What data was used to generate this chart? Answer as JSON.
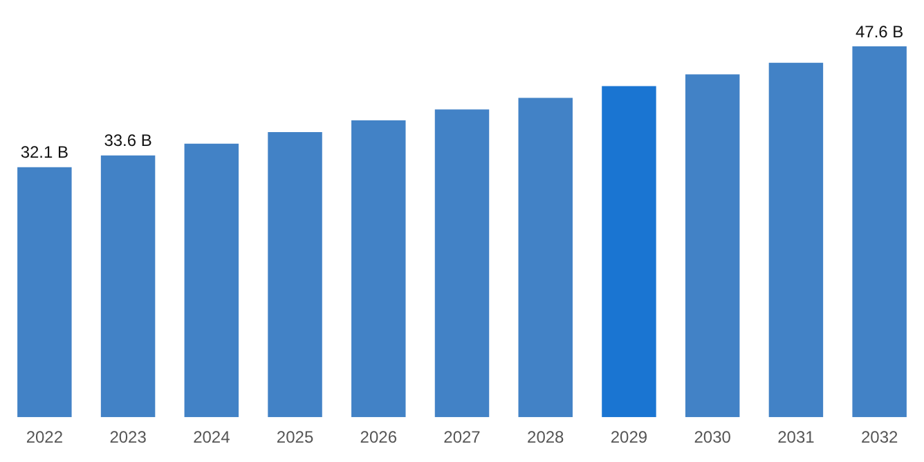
{
  "chart_data": {
    "type": "bar",
    "categories": [
      "2022",
      "2023",
      "2024",
      "2025",
      "2026",
      "2027",
      "2028",
      "2029",
      "2030",
      "2031",
      "2032"
    ],
    "values": [
      32.1,
      33.6,
      35.1,
      36.6,
      38.1,
      39.5,
      41.0,
      42.5,
      44.0,
      45.5,
      47.6
    ],
    "colors": [
      "#4282c6",
      "#4282c6",
      "#4282c6",
      "#4282c6",
      "#4282c6",
      "#4282c6",
      "#4282c6",
      "#1a75d2",
      "#4282c6",
      "#4282c6",
      "#4282c6"
    ],
    "value_labels": [
      "32.1 B",
      "33.6 B",
      null,
      null,
      null,
      null,
      null,
      null,
      null,
      null,
      "47.6 B"
    ],
    "grid": false,
    "legend": false
  }
}
